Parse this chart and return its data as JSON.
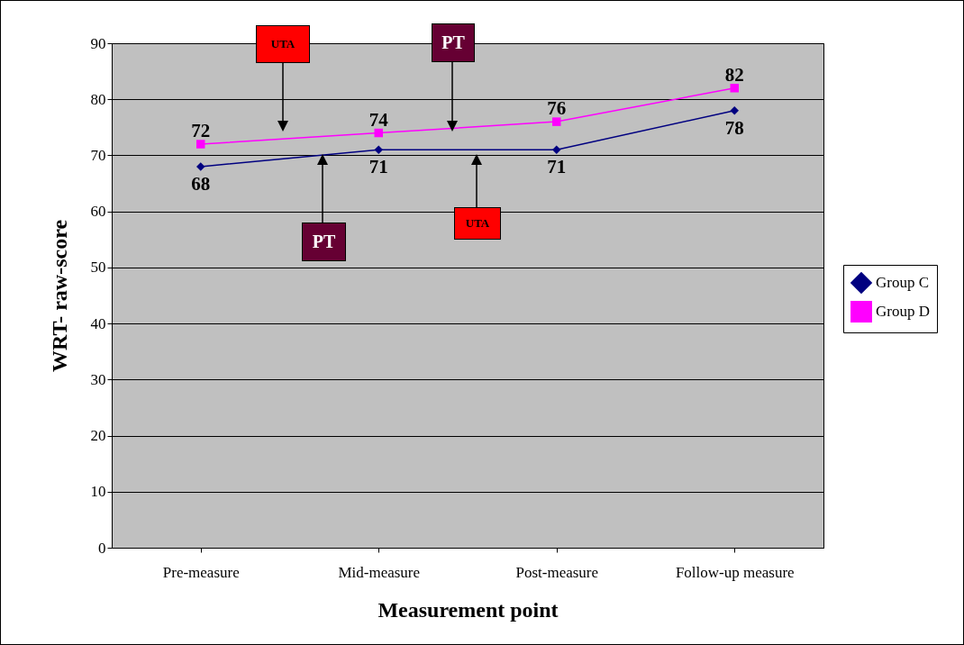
{
  "chart_data": {
    "type": "line",
    "xlabel": "Measurement point",
    "ylabel": "WRT- raw-score",
    "categories": [
      "Pre-measure",
      "Mid-measure",
      "Post-measure",
      "Follow-up measure"
    ],
    "series": [
      {
        "name": "Group C",
        "color": "#000080",
        "marker": "diamond",
        "values": [
          68,
          71,
          71,
          78
        ]
      },
      {
        "name": "Group D",
        "color": "#ff00ff",
        "marker": "square",
        "values": [
          72,
          74,
          76,
          82
        ]
      }
    ],
    "ylim": [
      0,
      90
    ],
    "yticks": [
      0,
      10,
      20,
      30,
      40,
      50,
      60,
      70,
      80,
      90
    ],
    "grid": "y",
    "legend": "right",
    "data_labels": true,
    "annotations": [
      "UTA",
      "PT",
      "PT",
      "UTA"
    ]
  }
}
